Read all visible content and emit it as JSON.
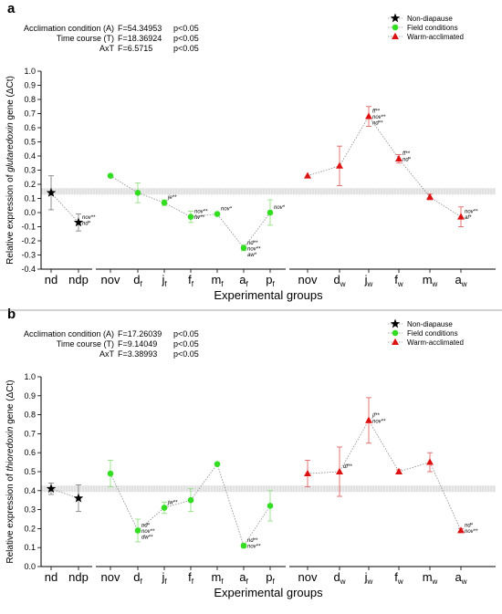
{
  "colors": {
    "nondiapause": "#000000",
    "field": "#33dd22",
    "field_err": "#88dd77",
    "warm": "#dd1111",
    "warm_err": "#dd5555",
    "band": "#c8c8c8"
  },
  "legend": {
    "nondiapause": "Non-diapause",
    "field": "Field conditions",
    "warm": "Warm-acclimated"
  },
  "chart_data": [
    {
      "panel_label": "a",
      "type": "scatter",
      "stats": [
        {
          "label": "Acclimation condition (A)",
          "value": "F=54.34953",
          "p": "p<0.05"
        },
        {
          "label": "Time course (T)",
          "value": "F=18.36924",
          "p": "p<0.05"
        },
        {
          "label": "AxT",
          "value": "F=6.5715",
          "p": "p<0.05"
        }
      ],
      "ylabel_prefix": "Relative expression of ",
      "ylabel_gene": "glutaredoxin",
      "ylabel_suffix": " gene (ΔCt)",
      "xlabel": "Experimental groups",
      "ylim": [
        -0.4,
        1.0
      ],
      "yticks": [
        "-0.4",
        "-0.3",
        "-0.2",
        "-0.1",
        "0.0",
        "0.1",
        "0.2",
        "0.3",
        "0.4",
        "0.5",
        "0.6",
        "0.7",
        "0.8",
        "0.9",
        "1.0"
      ],
      "reference_band": 0.15,
      "groups": [
        {
          "series": "nondiapause",
          "categories": [
            {
              "label": "nd",
              "sub": "",
              "y": 0.14,
              "err": 0.12,
              "ann": []
            },
            {
              "label": "ndp",
              "sub": "",
              "y": -0.07,
              "err": 0.06,
              "ann": [
                "nov**",
                "nd*"
              ]
            }
          ]
        },
        {
          "series": "field",
          "categories": [
            {
              "label": "nov",
              "sub": "",
              "y": 0.26,
              "err": 0.0,
              "ann": []
            },
            {
              "label": "d",
              "sub": "f",
              "y": 0.14,
              "err": 0.07,
              "ann": []
            },
            {
              "label": "j",
              "sub": "f",
              "y": 0.07,
              "err": 0.02,
              "ann": [
                "je**"
              ]
            },
            {
              "label": "f",
              "sub": "f",
              "y": -0.03,
              "err": 0.04,
              "ann": [
                "nov**",
                "fw**"
              ]
            },
            {
              "label": "m",
              "sub": "f",
              "y": -0.01,
              "err": 0.0,
              "ann": [
                "nov*"
              ]
            },
            {
              "label": "a",
              "sub": "f",
              "y": -0.25,
              "err": 0.02,
              "ann": [
                "nd**",
                "nov**",
                "aw*"
              ]
            },
            {
              "label": "p",
              "sub": "f",
              "y": 0.0,
              "err": 0.09,
              "ann": [
                "nov*"
              ]
            }
          ]
        },
        {
          "series": "warm",
          "categories": [
            {
              "label": "nov",
              "sub": "",
              "y": 0.26,
              "err": 0.0,
              "ann": []
            },
            {
              "label": "d",
              "sub": "w",
              "y": 0.33,
              "err": 0.14,
              "ann": []
            },
            {
              "label": "j",
              "sub": "w",
              "y": 0.68,
              "err": 0.07,
              "ann": [
                "ff**",
                "nov**",
                "nd**"
              ]
            },
            {
              "label": "f",
              "sub": "w",
              "y": 0.38,
              "err": 0.03,
              "ann": [
                "ff**",
                "nd*"
              ]
            },
            {
              "label": "m",
              "sub": "w",
              "y": 0.11,
              "err": 0.02,
              "ann": []
            },
            {
              "label": "a",
              "sub": "w",
              "y": -0.03,
              "err": 0.07,
              "ann": [
                "nov**",
                "af*"
              ]
            }
          ]
        }
      ]
    },
    {
      "panel_label": "b",
      "type": "scatter",
      "stats": [
        {
          "label": "Acclimation condition (A)",
          "value": "F=17.26039",
          "p": "p<0.05"
        },
        {
          "label": "Time course (T)",
          "value": "F=9.14049",
          "p": "p<0.05"
        },
        {
          "label": "AxT",
          "value": "F=3.38993",
          "p": "p<0.05"
        }
      ],
      "ylabel_prefix": "Relative expression of ",
      "ylabel_gene": "thioredoxin",
      "ylabel_suffix": " gene (ΔCt)",
      "xlabel": "Experimental groups",
      "ylim": [
        0.0,
        1.0
      ],
      "yticks": [
        "0.0",
        "0.1",
        "0.2",
        "0.3",
        "0.4",
        "0.5",
        "0.6",
        "0.7",
        "0.8",
        "0.9",
        "1.0"
      ],
      "reference_band": 0.41,
      "groups": [
        {
          "series": "nondiapause",
          "categories": [
            {
              "label": "nd",
              "sub": "",
              "y": 0.41,
              "err": 0.03,
              "ann": []
            },
            {
              "label": "ndp",
              "sub": "",
              "y": 0.36,
              "err": 0.07,
              "ann": []
            }
          ]
        },
        {
          "series": "field",
          "categories": [
            {
              "label": "nov",
              "sub": "",
              "y": 0.49,
              "err": 0.07,
              "ann": []
            },
            {
              "label": "d",
              "sub": "f",
              "y": 0.19,
              "err": 0.06,
              "ann": [
                "nd*",
                "nov**",
                "dw**"
              ]
            },
            {
              "label": "j",
              "sub": "f",
              "y": 0.31,
              "err": 0.03,
              "ann": [
                "jw**"
              ]
            },
            {
              "label": "f",
              "sub": "f",
              "y": 0.35,
              "err": 0.06,
              "ann": []
            },
            {
              "label": "m",
              "sub": "f",
              "y": 0.54,
              "err": 0.0,
              "ann": []
            },
            {
              "label": "a",
              "sub": "f",
              "y": 0.11,
              "err": 0.01,
              "ann": [
                "nd**",
                "nov**"
              ]
            },
            {
              "label": "p",
              "sub": "f",
              "y": 0.32,
              "err": 0.08,
              "ann": []
            }
          ]
        },
        {
          "series": "warm",
          "categories": [
            {
              "label": "nov",
              "sub": "",
              "y": 0.49,
              "err": 0.07,
              "ann": []
            },
            {
              "label": "d",
              "sub": "w",
              "y": 0.5,
              "err": 0.13,
              "ann": [
                "df**"
              ]
            },
            {
              "label": "j",
              "sub": "w",
              "y": 0.77,
              "err": 0.12,
              "ann": [
                "jf**",
                "nov**"
              ]
            },
            {
              "label": "f",
              "sub": "w",
              "y": 0.5,
              "err": 0.01,
              "ann": []
            },
            {
              "label": "m",
              "sub": "w",
              "y": 0.55,
              "err": 0.05,
              "ann": []
            },
            {
              "label": "a",
              "sub": "w",
              "y": 0.19,
              "err": 0.01,
              "ann": [
                "nd*",
                "nov**"
              ]
            }
          ]
        }
      ]
    }
  ]
}
